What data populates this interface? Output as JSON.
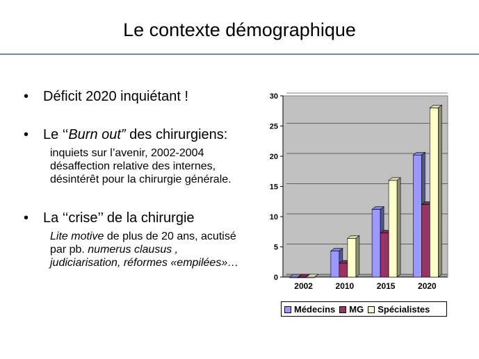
{
  "slide": {
    "title": "Le contexte démographique",
    "bullets": [
      {
        "text": "Déficit 2020 inquiétant !"
      },
      {
        "prefix": "Le ‘‘",
        "italic": "Burn out”",
        "suffix": " des chirurgiens:",
        "sub": [
          "inquiets sur l’avenir, 2002-2004",
          "désaffection relative des internes,",
          "désintérêt pour la chirurgie générale."
        ]
      },
      {
        "text": "La ‘‘crise’’ de la chirurgie",
        "sub_line1_italic": "Lite motive",
        "sub_line1_rest": " de plus de 20 ans, acutisé",
        "sub_line2_prefix": "par pb. ",
        "sub_line2_italic": "numerus clausus ,",
        "sub_line3": "judiciarisation, réformes «empilées»…"
      }
    ]
  },
  "chart_data": {
    "type": "bar",
    "categories": [
      "2002",
      "2010",
      "2015",
      "2020"
    ],
    "series": [
      {
        "name": "Médecins",
        "values": [
          0,
          4.3,
          11.2,
          20.2
        ],
        "color": "#9999ff"
      },
      {
        "name": "MG",
        "values": [
          0,
          2.3,
          7.3,
          12
        ],
        "color": "#993366"
      },
      {
        "name": "Spécialistes",
        "values": [
          0,
          6.4,
          16,
          28
        ],
        "color": "#ffffcc"
      }
    ],
    "ylim": [
      0,
      30
    ],
    "yticks": [
      0,
      5,
      10,
      15,
      20,
      25,
      30
    ],
    "grid": true,
    "legend_position": "bottom",
    "plot_bg": "#c0c0c0"
  }
}
